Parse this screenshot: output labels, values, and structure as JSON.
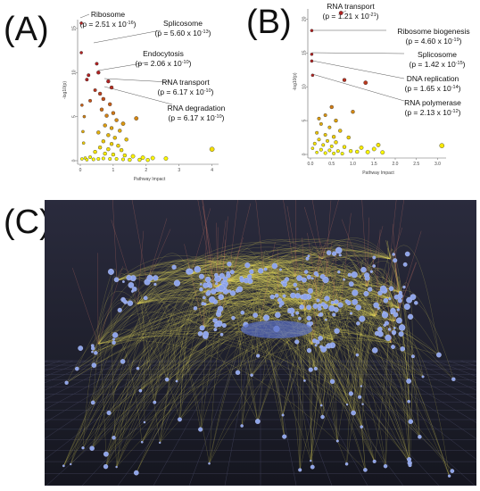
{
  "panels": {
    "a_label": "(A)",
    "b_label": "(B)",
    "c_label": "(C)"
  },
  "chart_data": [
    {
      "type": "scatter",
      "title": "",
      "xlabel": "Pathway Impact",
      "ylabel": "-log10(p)",
      "xlim": [
        0,
        4.2
      ],
      "ylim": [
        0,
        16
      ],
      "xticks": [
        "0",
        "1",
        "2",
        "3",
        "4"
      ],
      "yticks": [
        "0",
        "5",
        "10",
        "15"
      ],
      "grid": false,
      "points": [
        {
          "x": 0.03,
          "y": 15.6,
          "r": 1.2
        },
        {
          "x": 0.03,
          "y": 12.25,
          "r": 1.2
        },
        {
          "x": 0.25,
          "y": 9.7,
          "r": 1.4
        },
        {
          "x": 0.5,
          "y": 11.0,
          "r": 1.4
        },
        {
          "x": 0.2,
          "y": 9.2,
          "r": 1.4
        },
        {
          "x": 0.55,
          "y": 10.0,
          "r": 1.6
        },
        {
          "x": 0.85,
          "y": 9.0,
          "r": 1.6
        },
        {
          "x": 0.95,
          "y": 8.3,
          "r": 1.6
        },
        {
          "x": 0.6,
          "y": 7.6,
          "r": 1.6
        },
        {
          "x": 0.7,
          "y": 7.0,
          "r": 1.6
        },
        {
          "x": 0.9,
          "y": 6.4,
          "r": 1.6
        },
        {
          "x": 0.65,
          "y": 5.8,
          "r": 1.6
        },
        {
          "x": 1.0,
          "y": 5.4,
          "r": 1.6
        },
        {
          "x": 0.8,
          "y": 5.1,
          "r": 1.6
        },
        {
          "x": 1.1,
          "y": 4.6,
          "r": 1.6
        },
        {
          "x": 1.3,
          "y": 4.2,
          "r": 1.8
        },
        {
          "x": 1.7,
          "y": 4.8,
          "r": 1.8
        },
        {
          "x": 0.75,
          "y": 4.0,
          "r": 1.6
        },
        {
          "x": 0.95,
          "y": 3.7,
          "r": 1.6
        },
        {
          "x": 1.2,
          "y": 3.4,
          "r": 1.6
        },
        {
          "x": 0.55,
          "y": 3.2,
          "r": 1.6
        },
        {
          "x": 0.85,
          "y": 2.9,
          "r": 1.6
        },
        {
          "x": 1.05,
          "y": 2.6,
          "r": 1.6
        },
        {
          "x": 1.4,
          "y": 2.4,
          "r": 1.6
        },
        {
          "x": 0.7,
          "y": 2.2,
          "r": 1.6
        },
        {
          "x": 0.95,
          "y": 1.9,
          "r": 1.6
        },
        {
          "x": 1.15,
          "y": 1.7,
          "r": 1.6
        },
        {
          "x": 0.6,
          "y": 1.5,
          "r": 1.6
        },
        {
          "x": 0.85,
          "y": 1.3,
          "r": 1.6
        },
        {
          "x": 1.25,
          "y": 1.2,
          "r": 1.6
        },
        {
          "x": 0.45,
          "y": 1.0,
          "r": 1.6
        },
        {
          "x": 0.75,
          "y": 0.8,
          "r": 1.6
        },
        {
          "x": 1.0,
          "y": 0.7,
          "r": 1.6
        },
        {
          "x": 1.35,
          "y": 0.6,
          "r": 1.6
        },
        {
          "x": 1.6,
          "y": 0.5,
          "r": 1.8
        },
        {
          "x": 1.9,
          "y": 0.35,
          "r": 1.8
        },
        {
          "x": 2.2,
          "y": 0.3,
          "r": 1.8
        },
        {
          "x": 2.6,
          "y": 0.25,
          "r": 1.8
        },
        {
          "x": 0.3,
          "y": 0.4,
          "r": 1.4
        },
        {
          "x": 0.15,
          "y": 0.3,
          "r": 1.2
        },
        {
          "x": 0.05,
          "y": 0.2,
          "r": 1.2
        },
        {
          "x": 0.2,
          "y": 0.1,
          "r": 1.2
        },
        {
          "x": 0.4,
          "y": 0.15,
          "r": 1.4
        },
        {
          "x": 0.55,
          "y": 0.2,
          "r": 1.4
        },
        {
          "x": 0.7,
          "y": 0.25,
          "r": 1.4
        },
        {
          "x": 0.9,
          "y": 0.2,
          "r": 1.4
        },
        {
          "x": 1.1,
          "y": 0.2,
          "r": 1.4
        },
        {
          "x": 1.3,
          "y": 0.15,
          "r": 1.4
        },
        {
          "x": 1.5,
          "y": 0.1,
          "r": 1.6
        },
        {
          "x": 1.8,
          "y": 0.1,
          "r": 1.6
        },
        {
          "x": 2.05,
          "y": 0.08,
          "r": 1.6
        },
        {
          "x": 4.0,
          "y": 1.3,
          "r": 2.2
        },
        {
          "x": 0.1,
          "y": 2.0,
          "r": 1.2
        },
        {
          "x": 0.08,
          "y": 3.3,
          "r": 1.2
        },
        {
          "x": 0.12,
          "y": 5.0,
          "r": 1.2
        },
        {
          "x": 0.05,
          "y": 6.3,
          "r": 1.2
        },
        {
          "x": 0.3,
          "y": 6.8,
          "r": 1.4
        },
        {
          "x": 0.45,
          "y": 8.0,
          "r": 1.4
        }
      ],
      "annotations": [
        {
          "text": "Ribosome",
          "sub": "(p = 2.51 x 10",
          "exp": "-16",
          "close": ")"
        },
        {
          "text": "Splicosome",
          "sub": "(p = 5.60 x 10",
          "exp": "-13",
          "close": ")"
        },
        {
          "text": "Endocytosis",
          "sub": "(p = 2.06 x 10",
          "exp": "-10",
          "close": ")"
        },
        {
          "text": "RNA transport",
          "sub": "(p = 6.17 x 10",
          "exp": "-10",
          "close": ")"
        },
        {
          "text": "RNA degradation",
          "sub": "(p = 6.17 x 10",
          "exp": "-10",
          "close": ")"
        }
      ]
    },
    {
      "type": "scatter",
      "title": "",
      "xlabel": "Pathway Impact",
      "ylabel": "-log10(p)",
      "xlim": [
        0,
        3.2
      ],
      "ylim": [
        0,
        21.5
      ],
      "xticks": [
        "0.0",
        "0.5",
        "1.0",
        "1.5",
        "2.0",
        "2.5",
        "3.0"
      ],
      "yticks": [
        "0",
        "5",
        "10",
        "15",
        "20"
      ],
      "grid": false,
      "points": [
        {
          "x": 0.72,
          "y": 20.9,
          "r": 1.8
        },
        {
          "x": 0.03,
          "y": 18.3,
          "r": 1.2
        },
        {
          "x": 0.03,
          "y": 14.8,
          "r": 1.2
        },
        {
          "x": 0.03,
          "y": 13.8,
          "r": 1.2
        },
        {
          "x": 0.05,
          "y": 11.7,
          "r": 1.2
        },
        {
          "x": 0.8,
          "y": 11.0,
          "r": 1.6
        },
        {
          "x": 1.3,
          "y": 10.6,
          "r": 1.8
        },
        {
          "x": 0.5,
          "y": 7.0,
          "r": 1.6
        },
        {
          "x": 1.0,
          "y": 6.3,
          "r": 1.6
        },
        {
          "x": 0.35,
          "y": 5.8,
          "r": 1.4
        },
        {
          "x": 0.6,
          "y": 5.0,
          "r": 1.6
        },
        {
          "x": 0.25,
          "y": 4.5,
          "r": 1.4
        },
        {
          "x": 0.45,
          "y": 4.0,
          "r": 1.4
        },
        {
          "x": 0.7,
          "y": 3.5,
          "r": 1.6
        },
        {
          "x": 0.15,
          "y": 3.2,
          "r": 1.4
        },
        {
          "x": 0.35,
          "y": 2.9,
          "r": 1.4
        },
        {
          "x": 0.55,
          "y": 2.6,
          "r": 1.6
        },
        {
          "x": 0.9,
          "y": 2.5,
          "r": 1.6
        },
        {
          "x": 0.2,
          "y": 2.2,
          "r": 1.4
        },
        {
          "x": 0.4,
          "y": 2.0,
          "r": 1.4
        },
        {
          "x": 0.6,
          "y": 1.8,
          "r": 1.6
        },
        {
          "x": 0.1,
          "y": 1.6,
          "r": 1.4
        },
        {
          "x": 0.3,
          "y": 1.4,
          "r": 1.4
        },
        {
          "x": 0.5,
          "y": 1.2,
          "r": 1.4
        },
        {
          "x": 0.8,
          "y": 1.1,
          "r": 1.6
        },
        {
          "x": 1.2,
          "y": 1.0,
          "r": 1.8
        },
        {
          "x": 1.5,
          "y": 0.8,
          "r": 1.8
        },
        {
          "x": 0.05,
          "y": 0.9,
          "r": 1.2
        },
        {
          "x": 0.25,
          "y": 0.7,
          "r": 1.4
        },
        {
          "x": 0.45,
          "y": 0.6,
          "r": 1.4
        },
        {
          "x": 0.65,
          "y": 0.5,
          "r": 1.4
        },
        {
          "x": 0.95,
          "y": 0.5,
          "r": 1.6
        },
        {
          "x": 1.1,
          "y": 0.4,
          "r": 1.6
        },
        {
          "x": 1.35,
          "y": 0.35,
          "r": 1.8
        },
        {
          "x": 1.7,
          "y": 0.3,
          "r": 1.8
        },
        {
          "x": 0.15,
          "y": 0.3,
          "r": 1.2
        },
        {
          "x": 0.35,
          "y": 0.2,
          "r": 1.4
        },
        {
          "x": 0.55,
          "y": 0.15,
          "r": 1.4
        },
        {
          "x": 0.75,
          "y": 0.12,
          "r": 1.4
        },
        {
          "x": 3.1,
          "y": 1.3,
          "r": 2.2
        },
        {
          "x": 1.6,
          "y": 1.4,
          "r": 1.8
        },
        {
          "x": 0.2,
          "y": 5.3,
          "r": 1.4
        }
      ],
      "annotations": [
        {
          "text": "RNA transport",
          "sub": "(p = 1.21 x 10",
          "exp": "-21",
          "close": ")"
        },
        {
          "text": "Ribosome biogenesis",
          "sub": "(p = 4.60 x 10",
          "exp": "-19",
          "close": ")"
        },
        {
          "text": "Splicosome",
          "sub": "(p = 1.42 x 10",
          "exp": "-15",
          "close": ")"
        },
        {
          "text": "DNA replication",
          "sub": "(p = 1.65 x 10",
          "exp": "-14",
          "close": ")"
        },
        {
          "text": "RNA polymerase",
          "sub": "(p = 2.13 x 10",
          "exp": "-12",
          "close": ")"
        }
      ]
    }
  ],
  "colors": {
    "low_impact": "#ffff00",
    "high_impact": "#b22222",
    "network_bg": "#1e1f2e",
    "network_edge": "#e8e05a",
    "network_node": "#8ea4e8"
  }
}
